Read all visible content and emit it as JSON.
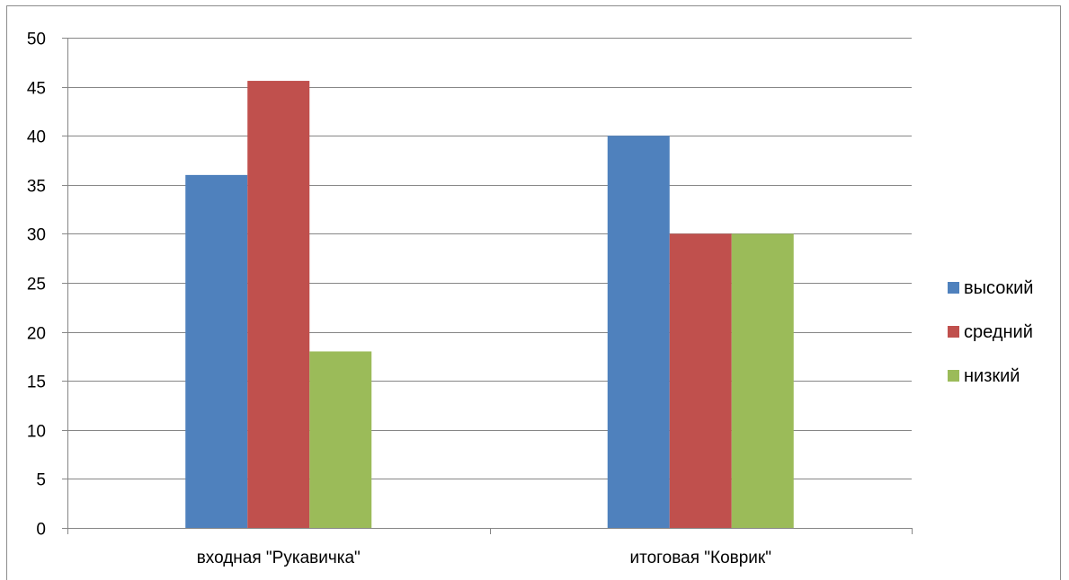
{
  "chart_data": {
    "type": "bar",
    "title": "",
    "xlabel": "",
    "ylabel": "",
    "categories": [
      "входная \"Рукавичка\"",
      "итоговая \"Коврик\""
    ],
    "series": [
      {
        "name": "высокий",
        "values": [
          36,
          40
        ],
        "color": "#4f81bd"
      },
      {
        "name": "средний",
        "values": [
          45.6,
          30
        ],
        "color": "#c0504d"
      },
      {
        "name": "низкий",
        "values": [
          18,
          30
        ],
        "color": "#9bbb59"
      }
    ],
    "ylim": [
      0,
      50
    ],
    "yticks": [
      0,
      5,
      10,
      15,
      20,
      25,
      30,
      35,
      40,
      45,
      50
    ],
    "grid": true,
    "legend": "right"
  }
}
